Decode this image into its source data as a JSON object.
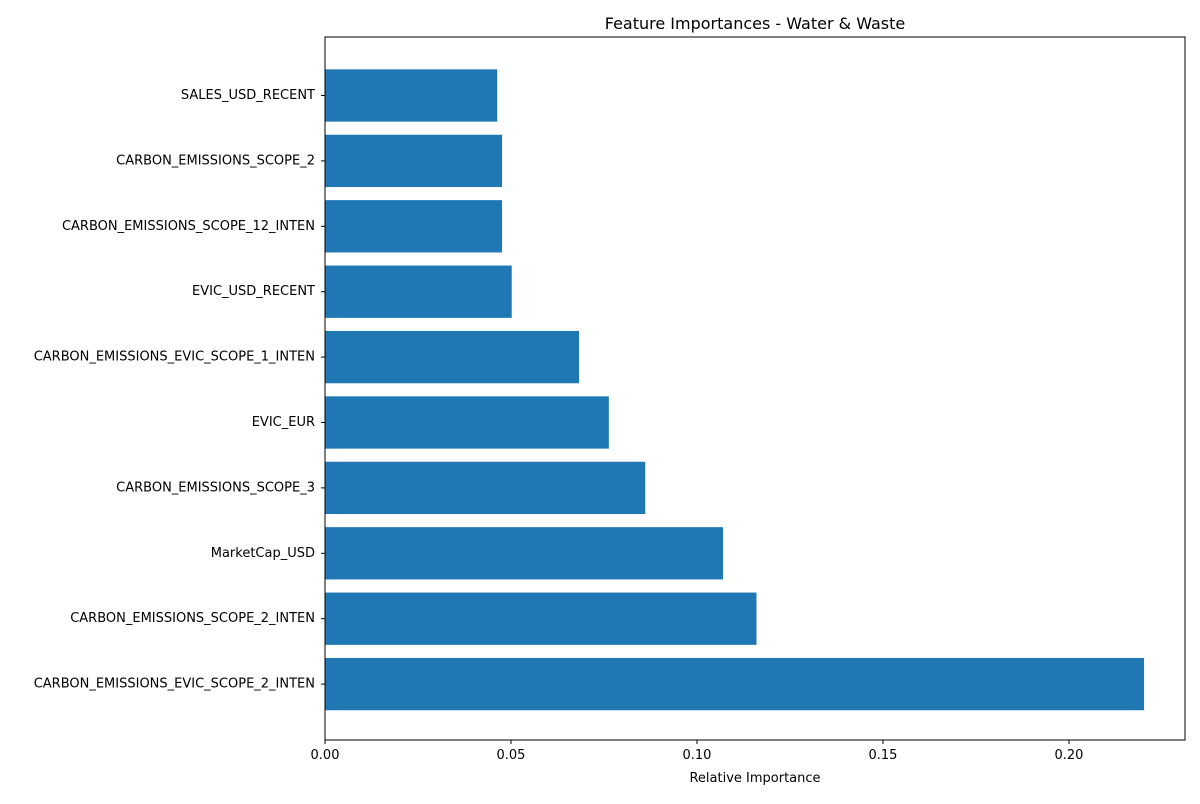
{
  "colors": {
    "bar": "#1f77b4",
    "axis": "#000000",
    "background": "#ffffff"
  },
  "chart_data": {
    "type": "bar",
    "orientation": "horizontal",
    "title": "Feature Importances - Water & Waste",
    "xlabel": "Relative Importance",
    "ylabel": "",
    "xlim": [
      0,
      0.2312
    ],
    "xticks": [
      0.0,
      0.05,
      0.1,
      0.15,
      0.2
    ],
    "xtick_labels": [
      "0.00",
      "0.05",
      "0.10",
      "0.15",
      "0.20"
    ],
    "grid": false,
    "categories": [
      "SALES_USD_RECENT",
      "CARBON_EMISSIONS_SCOPE_2",
      "CARBON_EMISSIONS_SCOPE_12_INTEN",
      "EVIC_USD_RECENT",
      "CARBON_EMISSIONS_EVIC_SCOPE_1_INTEN",
      "EVIC_EUR",
      "CARBON_EMISSIONS_SCOPE_3",
      "MarketCap_USD",
      "CARBON_EMISSIONS_SCOPE_2_INTEN",
      "CARBON_EMISSIONS_EVIC_SCOPE_2_INTEN"
    ],
    "values": [
      0.0463,
      0.0476,
      0.0476,
      0.0502,
      0.0683,
      0.0763,
      0.0861,
      0.107,
      0.116,
      0.2202
    ]
  }
}
